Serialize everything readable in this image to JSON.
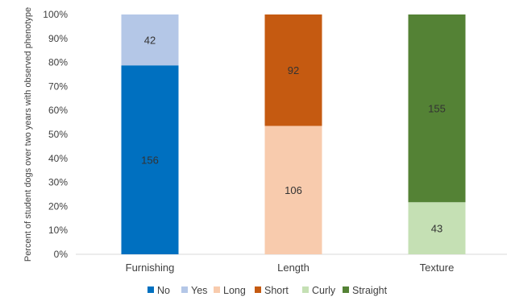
{
  "chart_data": {
    "type": "bar",
    "stacked": true,
    "normalized": true,
    "title": "",
    "xlabel": "",
    "ylabel": "Percent of student dogs over two years with observed phenotype",
    "ylim": [
      0,
      100
    ],
    "yticks": [
      "0%",
      "10%",
      "20%",
      "30%",
      "40%",
      "50%",
      "60%",
      "70%",
      "80%",
      "90%",
      "100%"
    ],
    "grid": false,
    "legend_position": "bottom",
    "categories": [
      {
        "name": "Furnishing",
        "segments": [
          {
            "name": "No",
            "value": 156,
            "color": "#0070C0"
          },
          {
            "name": "Yes",
            "value": 42,
            "color": "#B4C7E7"
          }
        ]
      },
      {
        "name": "Length",
        "segments": [
          {
            "name": "Long",
            "value": 106,
            "color": "#F8CBAD"
          },
          {
            "name": "Short",
            "value": 92,
            "color": "#C55A11"
          }
        ]
      },
      {
        "name": "Texture",
        "segments": [
          {
            "name": "Curly",
            "value": 43,
            "color": "#C5E0B4"
          },
          {
            "name": "Straight",
            "value": 155,
            "color": "#548235"
          }
        ]
      }
    ],
    "legend": [
      {
        "name": "No",
        "color": "#0070C0"
      },
      {
        "name": "Yes",
        "color": "#B4C7E7"
      },
      {
        "name": "Long",
        "color": "#F8CBAD"
      },
      {
        "name": "Short",
        "color": "#C55A11"
      },
      {
        "name": "Curly",
        "color": "#C5E0B4"
      },
      {
        "name": "Straight",
        "color": "#548235"
      }
    ]
  }
}
